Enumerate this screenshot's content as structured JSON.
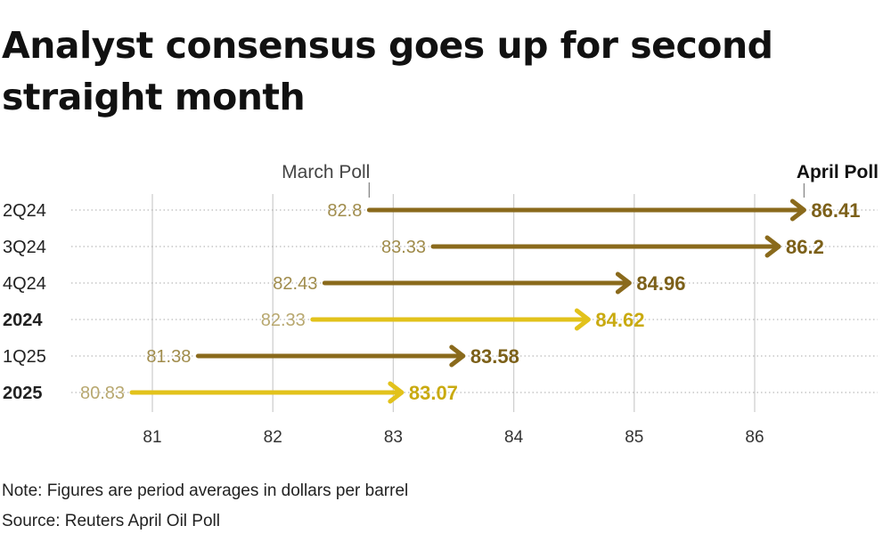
{
  "title": "Analyst consensus goes up for second straight month",
  "note": "Note: Figures are period averages in dollars per barrel",
  "source": "Source: Reuters April Oil Poll",
  "colors": {
    "quarter_arrow": "#8a6a1c",
    "annual_arrow": "#e2c21b",
    "quarter_start_label": "#a08c4c",
    "annual_start_label": "#b8a870",
    "end_label_quarter": "#7c6019",
    "end_label_annual": "#c9aa10",
    "gridline": "#cfcfcf",
    "dotted_line": "#a9a9a9"
  },
  "chart_data": {
    "type": "arrow-dot-plot",
    "title": "Analyst consensus goes up for second straight month",
    "xlabel": "",
    "ylabel": "",
    "xlim": [
      80.5,
      87.0
    ],
    "x_ticks": [
      "81",
      "82",
      "83",
      "84",
      "85",
      "86"
    ],
    "x_tick_values": [
      81,
      82,
      83,
      84,
      85,
      86
    ],
    "series": [
      {
        "name": "March Poll",
        "annotation_value": 82.8
      },
      {
        "name": "April Poll",
        "annotation_value": 86.41
      }
    ],
    "categories": [
      "2Q24",
      "3Q24",
      "4Q24",
      "2024",
      "1Q25",
      "2025"
    ],
    "rows": [
      {
        "label": "2Q24",
        "march": 82.8,
        "april": 86.41,
        "march_label": "82.8",
        "april_label": "86.41",
        "annual": false
      },
      {
        "label": "3Q24",
        "march": 83.33,
        "april": 86.2,
        "march_label": "83.33",
        "april_label": "86.2",
        "annual": false
      },
      {
        "label": "4Q24",
        "march": 82.43,
        "april": 84.96,
        "march_label": "82.43",
        "april_label": "84.96",
        "annual": false
      },
      {
        "label": "2024",
        "march": 82.33,
        "april": 84.62,
        "march_label": "82.33",
        "april_label": "84.62",
        "annual": true
      },
      {
        "label": "1Q25",
        "march": 81.38,
        "april": 83.58,
        "march_label": "81.38",
        "april_label": "83.58",
        "annual": false
      },
      {
        "label": "2025",
        "march": 80.83,
        "april": 83.07,
        "march_label": "80.83",
        "april_label": "83.07",
        "annual": true
      }
    ]
  }
}
